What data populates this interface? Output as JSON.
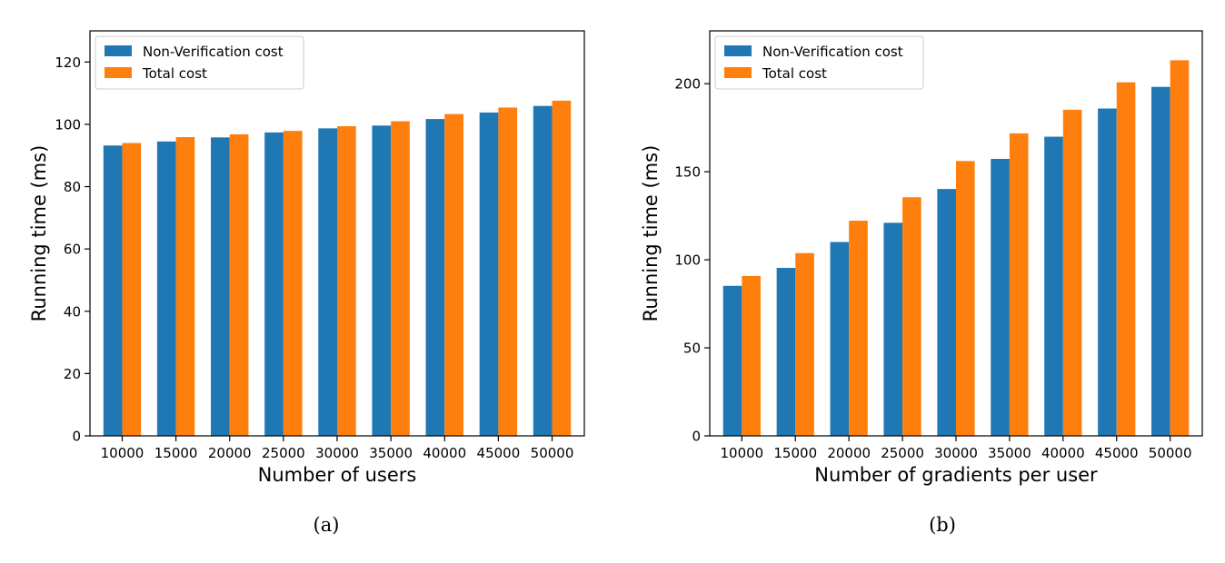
{
  "chart_data": [
    {
      "type": "bar",
      "caption": "(a)",
      "xlabel": "Number of users",
      "ylabel": "Running time (ms)",
      "categories": [
        "10000",
        "15000",
        "20000",
        "25000",
        "30000",
        "35000",
        "40000",
        "45000",
        "50000"
      ],
      "series": [
        {
          "name": "Non-Verification cost",
          "color": "#1f77b4",
          "values": [
            93.2,
            94.5,
            95.8,
            97.4,
            98.7,
            99.6,
            101.7,
            103.8,
            105.9
          ]
        },
        {
          "name": "Total cost",
          "color": "#ff7f0e",
          "values": [
            94.0,
            95.9,
            96.8,
            97.9,
            99.4,
            101.0,
            103.3,
            105.4,
            107.6
          ]
        }
      ],
      "ylim": [
        0,
        130
      ],
      "yticks": [
        0,
        20,
        40,
        60,
        80,
        100,
        120
      ],
      "legend": "top-left",
      "grid": false
    },
    {
      "type": "bar",
      "caption": "(b)",
      "xlabel": "Number of gradients per user",
      "ylabel": "Running time (ms)",
      "categories": [
        "10000",
        "15000",
        "20000",
        "25000",
        "30000",
        "35000",
        "40000",
        "45000",
        "50000"
      ],
      "series": [
        {
          "name": "Non-Verification cost",
          "color": "#1f77b4",
          "values": [
            85.2,
            95.4,
            110.1,
            121.0,
            140.2,
            157.3,
            169.9,
            185.9,
            198.2
          ]
        },
        {
          "name": "Total cost",
          "color": "#ff7f0e",
          "values": [
            90.8,
            103.8,
            122.2,
            135.5,
            156.1,
            171.8,
            185.2,
            200.8,
            213.3
          ]
        }
      ],
      "ylim": [
        0,
        230
      ],
      "yticks": [
        0,
        50,
        100,
        150,
        200
      ],
      "legend": "top-left",
      "grid": false
    }
  ]
}
